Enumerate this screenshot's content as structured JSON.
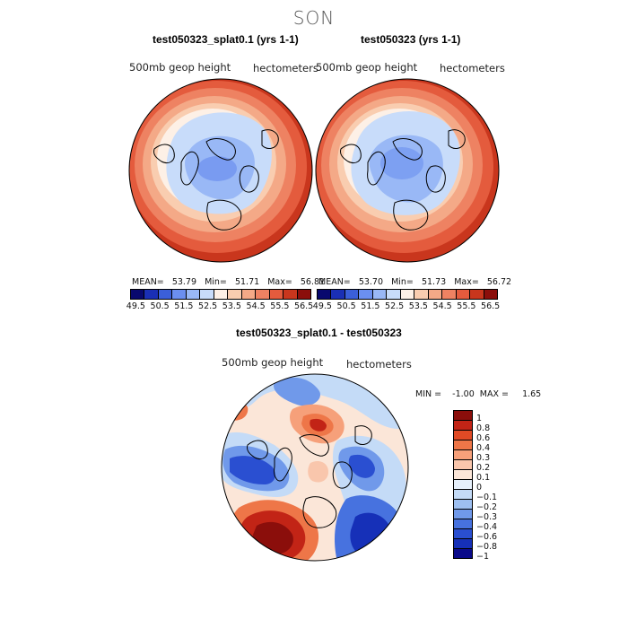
{
  "season": "SON",
  "colors": {
    "abs_scale": [
      "#08086e",
      "#1a2fb5",
      "#3b5fd9",
      "#6b8ff0",
      "#99b8f6",
      "#c8dcfa",
      "#fdf0e6",
      "#f9cdb0",
      "#f4a987",
      "#ee8262",
      "#e45b3d",
      "#c9361d",
      "#8b0e0b"
    ],
    "diff_scale": [
      "#8b0e0b",
      "#c22416",
      "#e04a25",
      "#ee7648",
      "#f6a07a",
      "#f9c6ac",
      "#fbe6d8",
      "#e6f0fb",
      "#c4dbf7",
      "#9dbff1",
      "#7099ea",
      "#4772df",
      "#2a4fd1",
      "#1630b8",
      "#0a0a8a"
    ]
  },
  "panels": {
    "left": {
      "title": "test050323_splat0.1 (yrs 1-1)",
      "var_label": "500mb geop height",
      "units_label": "hectometers",
      "stats": "MEAN=   53.79   Min=   51.71   Max=   56.81"
    },
    "right": {
      "title": "test050323 (yrs 1-1)",
      "var_label": "500mb geop height",
      "units_label": "hectometers",
      "stats": "MEAN=   53.70   Min=   51.73   Max=   56.72"
    },
    "diff": {
      "title": "test050323_splat0.1 - test050323",
      "var_label": "500mb geop height",
      "units_label": "hectometers",
      "stats": "MIN =    -1.00  MAX =     1.65"
    }
  },
  "abs_ticks": [
    "49.5",
    "50.5",
    "51.5",
    "52.5",
    "53.5",
    "54.5",
    "55.5",
    "56.5"
  ],
  "diff_ticks": [
    "1",
    "0.8",
    "0.6",
    "0.4",
    "0.3",
    "0.2",
    "0.1",
    "0",
    "−0.1",
    "−0.2",
    "−0.3",
    "−0.4",
    "−0.6",
    "−0.8",
    "−1"
  ]
}
